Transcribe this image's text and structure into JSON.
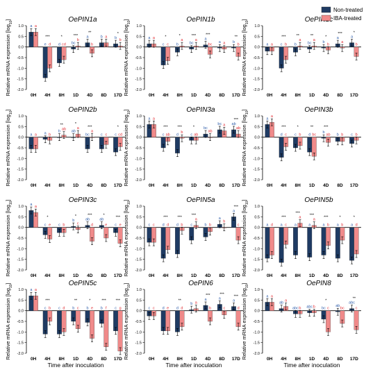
{
  "figure": {
    "ylabel_prefix": "Relative mRNA expression [log",
    "ylabel_sub": "10",
    "ylabel_suffix": "]",
    "xlabel": "Time after inoculation",
    "categories": [
      "0H",
      "4H",
      "8H",
      "1D",
      "4D",
      "8D",
      "17D"
    ],
    "legend": [
      {
        "name": "Non-treated",
        "color": "#1f3b63"
      },
      {
        "name": "IBA-treated",
        "color": "#f08a8a"
      }
    ],
    "colors": {
      "non_treated": "#1f3b63",
      "iba_treated": "#f08a8a",
      "non_letter": "#2a5aa8",
      "iba_letter": "#e0262c"
    }
  },
  "chart_data": [
    {
      "type": "bar",
      "title": "OePIN1a",
      "ylim": [
        -2.0,
        1.0
      ],
      "categories": [
        "0H",
        "4H",
        "8H",
        "1D",
        "4D",
        "8D",
        "17D"
      ],
      "series": [
        {
          "name": "Non-treated",
          "values": [
            0.7,
            -1.45,
            -0.75,
            -0.1,
            0.2,
            0.2,
            0.15
          ]
        },
        {
          "name": "IBA-treated",
          "values": [
            0.7,
            -1.0,
            -0.6,
            0.05,
            -0.3,
            0.2,
            0.05
          ]
        }
      ],
      "letters_non": [
        "a",
        "e",
        "d",
        "bc",
        "a",
        "b",
        "b"
      ],
      "letters_iba": [
        "a",
        "d",
        "cd",
        "b",
        "b",
        "a",
        "b"
      ],
      "stars": [
        "",
        "***",
        "*",
        "***",
        "**",
        "",
        "*"
      ]
    },
    {
      "type": "bar",
      "title": "OePIN1b",
      "ylim": [
        -2.0,
        1.0
      ],
      "categories": [
        "0H",
        "4H",
        "8H",
        "1D",
        "4D",
        "8D",
        "17D"
      ],
      "series": [
        {
          "name": "Non-treated",
          "values": [
            0.15,
            -0.85,
            -0.25,
            -0.1,
            0.1,
            -0.05,
            -0.05
          ]
        },
        {
          "name": "IBA-treated",
          "values": [
            0.15,
            -0.65,
            0.05,
            0.05,
            -0.35,
            -0.1,
            -0.45
          ]
        }
      ],
      "letters_non": [
        "a",
        "c",
        "b",
        "bc",
        "a",
        "a",
        "b"
      ],
      "letters_iba": [
        "a",
        "c",
        "a",
        "a",
        "bc",
        "a",
        "b"
      ],
      "stars": [
        "",
        "*",
        "*",
        "***",
        "***",
        "",
        "**"
      ]
    },
    {
      "type": "bar",
      "title": "OePIN1c",
      "ylim": [
        -2.0,
        1.0
      ],
      "categories": [
        "0H",
        "4H",
        "8H",
        "1D",
        "4D",
        "8D",
        "17D"
      ],
      "series": [
        {
          "name": "Non-treated",
          "values": [
            -0.2,
            -1.0,
            -0.25,
            -0.1,
            -0.05,
            0.15,
            0.2
          ]
        },
        {
          "name": "IBA-treated",
          "values": [
            -0.2,
            -0.6,
            0.05,
            0.05,
            -0.15,
            -0.05,
            -0.45
          ]
        }
      ],
      "letters_non": [
        "a",
        "c",
        "b",
        "bc",
        "b",
        "a",
        "a"
      ],
      "letters_iba": [
        "a",
        "b",
        "a",
        "a",
        "b",
        "a",
        "b"
      ],
      "stars": [
        "",
        "***",
        "**",
        "**",
        "*",
        "***",
        "*"
      ]
    },
    {
      "type": "bar",
      "title": "OePIN2b",
      "ylim": [
        -2.0,
        1.0
      ],
      "categories": [
        "0H",
        "4H",
        "8H",
        "1D",
        "4D",
        "8D",
        "17D"
      ],
      "series": [
        {
          "name": "Non-treated",
          "values": [
            -0.55,
            -0.1,
            0.0,
            0.0,
            -0.55,
            -0.55,
            -0.7
          ]
        },
        {
          "name": "IBA-treated",
          "values": [
            -0.55,
            -0.15,
            0.1,
            0.15,
            0.0,
            -0.35,
            -0.45
          ]
        }
      ],
      "letters_non": [
        "a",
        "a",
        "b",
        "ab",
        "bc",
        "c",
        "c"
      ],
      "letters_iba": [
        "a",
        "b",
        "ab",
        "a",
        "a",
        "c",
        "cd"
      ],
      "stars": [
        "",
        "",
        "**",
        "*",
        "***",
        "",
        "*"
      ]
    },
    {
      "type": "bar",
      "title": "OePIN3a",
      "ylim": [
        -2.0,
        1.0
      ],
      "categories": [
        "0H",
        "4H",
        "8H",
        "1D",
        "4D",
        "8D",
        "17D"
      ],
      "series": [
        {
          "name": "Non-treated",
          "values": [
            0.6,
            -0.5,
            -0.75,
            -0.15,
            0.15,
            0.35,
            0.35
          ]
        },
        {
          "name": "IBA-treated",
          "values": [
            0.6,
            -0.2,
            -0.05,
            -0.15,
            0.0,
            0.3,
            0.15
          ]
        }
      ],
      "letters_non": [
        "a",
        "c",
        "d",
        "c",
        "bc",
        "bc",
        "ab"
      ],
      "letters_iba": [
        "a",
        "ab",
        "b",
        "ab",
        "ab",
        "a",
        "ab"
      ],
      "stars": [
        "",
        "***",
        "***",
        "*",
        "",
        "",
        "***"
      ]
    },
    {
      "type": "bar",
      "title": "OePIN3b",
      "ylim": [
        -2.0,
        1.0
      ],
      "categories": [
        "0H",
        "4H",
        "8H",
        "1D",
        "4D",
        "8D",
        "17D"
      ],
      "series": [
        {
          "name": "Non-treated",
          "values": [
            0.6,
            -0.95,
            -0.5,
            -0.7,
            -0.05,
            -0.2,
            -0.3
          ]
        },
        {
          "name": "IBA-treated",
          "values": [
            0.7,
            -0.45,
            -0.4,
            -0.9,
            -0.25,
            -0.2,
            -0.15
          ]
        }
      ],
      "letters_non": [
        "a",
        "d",
        "c",
        "d",
        "b",
        "b",
        "c"
      ],
      "letters_iba": [
        "a",
        "c",
        "b",
        "bc",
        "ab",
        "b",
        "b"
      ],
      "stars": [
        "",
        "***",
        "*",
        "**",
        "***",
        "",
        ""
      ]
    },
    {
      "type": "bar",
      "title": "OePIN3c",
      "ylim": [
        -2.0,
        1.0
      ],
      "categories": [
        "0H",
        "4H",
        "8H",
        "1D",
        "4D",
        "8D",
        "17D"
      ],
      "series": [
        {
          "name": "Non-treated",
          "values": [
            0.8,
            -0.35,
            -0.25,
            0.05,
            0.1,
            0.1,
            -0.25
          ]
        },
        {
          "name": "IBA-treated",
          "values": [
            0.7,
            -0.55,
            -0.25,
            -0.1,
            -0.65,
            -0.5,
            -0.75
          ]
        }
      ],
      "letters_non": [
        "a",
        "c",
        "c",
        "b",
        "ab",
        "ab",
        "c"
      ],
      "letters_iba": [
        "a",
        "e",
        "b",
        "c",
        "d",
        "e",
        "e"
      ],
      "stars": [
        "",
        "*",
        "",
        "*",
        "***",
        "*",
        "***"
      ]
    },
    {
      "type": "bar",
      "title": "OePIN5a",
      "ylim": [
        -2.0,
        1.0
      ],
      "categories": [
        "0H",
        "4H",
        "8H",
        "1D",
        "4D",
        "8D",
        "17D"
      ],
      "series": [
        {
          "name": "Non-treated",
          "values": [
            -0.7,
            -1.45,
            -1.25,
            -0.6,
            -0.45,
            0.15,
            0.5
          ]
        },
        {
          "name": "IBA-treated",
          "values": [
            -0.7,
            -1.05,
            -0.15,
            0.1,
            -0.2,
            0.0,
            -0.6
          ]
        }
      ],
      "letters_non": [
        "c",
        "d",
        "d",
        "c",
        "b",
        "a",
        "a"
      ],
      "letters_iba": [
        "c",
        "d",
        "b",
        "a",
        "b",
        "b",
        "c"
      ],
      "stars": [
        "",
        "***",
        "***",
        "***",
        "",
        "",
        "***"
      ]
    },
    {
      "type": "bar",
      "title": "OePIN5b",
      "ylim": [
        -2.0,
        1.0
      ],
      "categories": [
        "0H",
        "4H",
        "8H",
        "1D",
        "4D",
        "8D",
        "17D"
      ],
      "series": [
        {
          "name": "Non-treated",
          "values": [
            -1.45,
            -1.65,
            -1.3,
            -1.4,
            -1.3,
            -1.45,
            -1.55
          ]
        },
        {
          "name": "IBA-treated",
          "values": [
            -1.3,
            -0.8,
            0.2,
            0.1,
            -0.85,
            -0.6,
            -1.25
          ]
        }
      ],
      "letters_non": [
        "a",
        "a",
        "a",
        "a",
        "a",
        "a",
        "a"
      ],
      "letters_iba": [
        "d",
        "c",
        "a",
        "a",
        "b",
        "b",
        "d"
      ],
      "stars": [
        "",
        "***",
        "***",
        "***",
        "***",
        "*",
        "*"
      ]
    },
    {
      "type": "bar",
      "title": "OePIN5c",
      "ylim": [
        -2.0,
        1.0
      ],
      "categories": [
        "0H",
        "4H",
        "8H",
        "1D",
        "4D",
        "8D",
        "17D"
      ],
      "series": [
        {
          "name": "Non-treated",
          "values": [
            0.7,
            -1.1,
            -1.1,
            -0.5,
            -0.55,
            -0.6,
            -0.95
          ]
        },
        {
          "name": "IBA-treated",
          "values": [
            0.7,
            -0.5,
            -1.0,
            -0.85,
            -1.3,
            -1.7,
            -1.9
          ]
        }
      ],
      "letters_non": [
        "a",
        "c",
        "c",
        "b",
        "b",
        "b",
        "c"
      ],
      "letters_iba": [
        "a",
        "b",
        "d",
        "c",
        "e",
        "f",
        "g"
      ],
      "stars": [
        "",
        "***",
        "",
        "**",
        "*",
        "***",
        "***"
      ]
    },
    {
      "type": "bar",
      "title": "OePIN6",
      "ylim": [
        -2.0,
        1.0
      ],
      "categories": [
        "0H",
        "4H",
        "8H",
        "1D",
        "4D",
        "8D",
        "17D"
      ],
      "series": [
        {
          "name": "Non-treated",
          "values": [
            -0.25,
            -0.95,
            -1.0,
            0.05,
            0.25,
            0.3,
            0.2
          ]
        },
        {
          "name": "IBA-treated",
          "values": [
            -0.25,
            -0.95,
            -0.75,
            0.1,
            -0.5,
            -0.2,
            -0.75
          ]
        }
      ],
      "letters_non": [
        "c",
        "d",
        "d",
        "b",
        "a",
        "a",
        "a"
      ],
      "letters_iba": [
        "c",
        "e",
        "d",
        "a",
        "b",
        "c",
        "d"
      ],
      "stars": [
        "",
        "",
        "**",
        "",
        "***",
        "***",
        "***"
      ]
    },
    {
      "type": "bar",
      "title": "OePIN8",
      "ylim": [
        -2.0,
        1.0
      ],
      "categories": [
        "0H",
        "4H",
        "8H",
        "1D",
        "4D",
        "8D",
        "17D"
      ],
      "series": [
        {
          "name": "Non-treated",
          "values": [
            0.4,
            0.1,
            -0.15,
            -0.1,
            -0.4,
            -0.05,
            0.1
          ]
        },
        {
          "name": "IBA-treated",
          "values": [
            0.4,
            0.2,
            -0.15,
            -0.1,
            -1.0,
            -0.6,
            -0.9
          ]
        }
      ],
      "letters_non": [
        "a",
        "ab",
        "abc",
        "abc",
        "bc",
        "ab",
        "abc"
      ],
      "letters_iba": [
        "a",
        "a",
        "b",
        "b",
        "c",
        "bc",
        "c"
      ],
      "stars": [
        "",
        "",
        "",
        "",
        "*",
        "",
        "**"
      ]
    }
  ]
}
